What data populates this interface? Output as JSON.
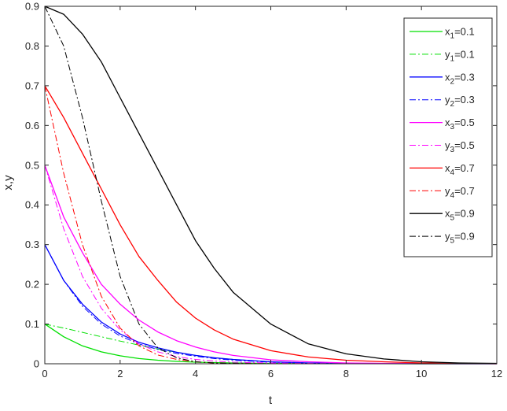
{
  "chart_data": {
    "type": "line",
    "title": "",
    "xlabel": "t",
    "ylabel": "x,y",
    "xlim": [
      0,
      12
    ],
    "ylim": [
      0,
      0.9
    ],
    "xticks": [
      "0",
      "2",
      "4",
      "6",
      "8",
      "10",
      "12"
    ],
    "yticks": [
      "0",
      "0.1",
      "0.2",
      "0.3",
      "0.4",
      "0.5",
      "0.6",
      "0.7",
      "0.8",
      "0.9"
    ],
    "grid": false,
    "legend_position": "top-right",
    "x": [
      0,
      0.5,
      1,
      1.5,
      2,
      2.5,
      3,
      3.5,
      4,
      4.5,
      5,
      6,
      7,
      8,
      9,
      10,
      11,
      12
    ],
    "series": [
      {
        "name": "x1=0.1",
        "base": "x",
        "sub": "1",
        "value_text": "=0.1",
        "color": "#00e000",
        "style": "solid",
        "values": [
          0.1,
          0.068,
          0.045,
          0.03,
          0.02,
          0.013,
          0.009,
          0.006,
          0.004,
          0.003,
          0.002,
          0.001,
          0.0005,
          0.0002,
          0.0001,
          0,
          0,
          0
        ]
      },
      {
        "name": "y1=0.1",
        "base": "y",
        "sub": "1",
        "value_text": "=0.1",
        "color": "#00e000",
        "style": "dashdot",
        "values": [
          0.1,
          0.09,
          0.079,
          0.068,
          0.057,
          0.047,
          0.037,
          0.029,
          0.021,
          0.015,
          0.011,
          0.005,
          0.002,
          0.001,
          0.0005,
          0,
          0,
          0
        ]
      },
      {
        "name": "x2=0.3",
        "base": "x",
        "sub": "2",
        "value_text": "=0.3",
        "color": "#0000ff",
        "style": "solid",
        "values": [
          0.3,
          0.21,
          0.15,
          0.105,
          0.075,
          0.054,
          0.04,
          0.029,
          0.021,
          0.015,
          0.011,
          0.005,
          0.002,
          0.001,
          0.0005,
          0,
          0,
          0
        ]
      },
      {
        "name": "y2=0.3",
        "base": "y",
        "sub": "2",
        "value_text": "=0.3",
        "color": "#0000ff",
        "style": "dashdot",
        "values": [
          0.3,
          0.21,
          0.145,
          0.1,
          0.07,
          0.05,
          0.036,
          0.026,
          0.019,
          0.013,
          0.009,
          0.004,
          0.002,
          0.001,
          0.0005,
          0,
          0,
          0
        ]
      },
      {
        "name": "x3=0.5",
        "base": "x",
        "sub": "3",
        "value_text": "=0.5",
        "color": "#ff00ff",
        "style": "solid",
        "values": [
          0.5,
          0.37,
          0.28,
          0.2,
          0.15,
          0.11,
          0.08,
          0.058,
          0.042,
          0.03,
          0.021,
          0.01,
          0.005,
          0.002,
          0.001,
          0.0005,
          0,
          0
        ]
      },
      {
        "name": "y3=0.5",
        "base": "y",
        "sub": "3",
        "value_text": "=0.5",
        "color": "#ff00ff",
        "style": "dashdot",
        "values": [
          0.5,
          0.34,
          0.22,
          0.14,
          0.085,
          0.05,
          0.03,
          0.018,
          0.011,
          0.007,
          0.004,
          0.002,
          0.001,
          0,
          0,
          0,
          0,
          0
        ]
      },
      {
        "name": "x4=0.7",
        "base": "x",
        "sub": "4",
        "value_text": "=0.7",
        "color": "#ff0000",
        "style": "solid",
        "values": [
          0.7,
          0.62,
          0.53,
          0.44,
          0.35,
          0.27,
          0.21,
          0.155,
          0.115,
          0.085,
          0.062,
          0.033,
          0.017,
          0.009,
          0.005,
          0.002,
          0.001,
          0
        ]
      },
      {
        "name": "y4=0.7",
        "base": "y",
        "sub": "4",
        "value_text": "=0.7",
        "color": "#ff0000",
        "style": "dashdot",
        "values": [
          0.7,
          0.48,
          0.3,
          0.17,
          0.09,
          0.045,
          0.022,
          0.011,
          0.005,
          0.002,
          0.001,
          0,
          0,
          0,
          0,
          0,
          0,
          0
        ]
      },
      {
        "name": "x5=0.9",
        "base": "x",
        "sub": "5",
        "value_text": "=0.9",
        "color": "#000000",
        "style": "solid",
        "values": [
          0.9,
          0.88,
          0.83,
          0.76,
          0.67,
          0.58,
          0.49,
          0.4,
          0.31,
          0.24,
          0.18,
          0.1,
          0.05,
          0.025,
          0.012,
          0.005,
          0.002,
          0.001
        ]
      },
      {
        "name": "y5=0.9",
        "base": "y",
        "sub": "5",
        "value_text": "=0.9",
        "color": "#000000",
        "style": "dashdot",
        "values": [
          0.9,
          0.8,
          0.62,
          0.41,
          0.22,
          0.1,
          0.04,
          0.015,
          0.005,
          0.002,
          0.001,
          0,
          0,
          0,
          0,
          0,
          0,
          0
        ]
      }
    ]
  }
}
